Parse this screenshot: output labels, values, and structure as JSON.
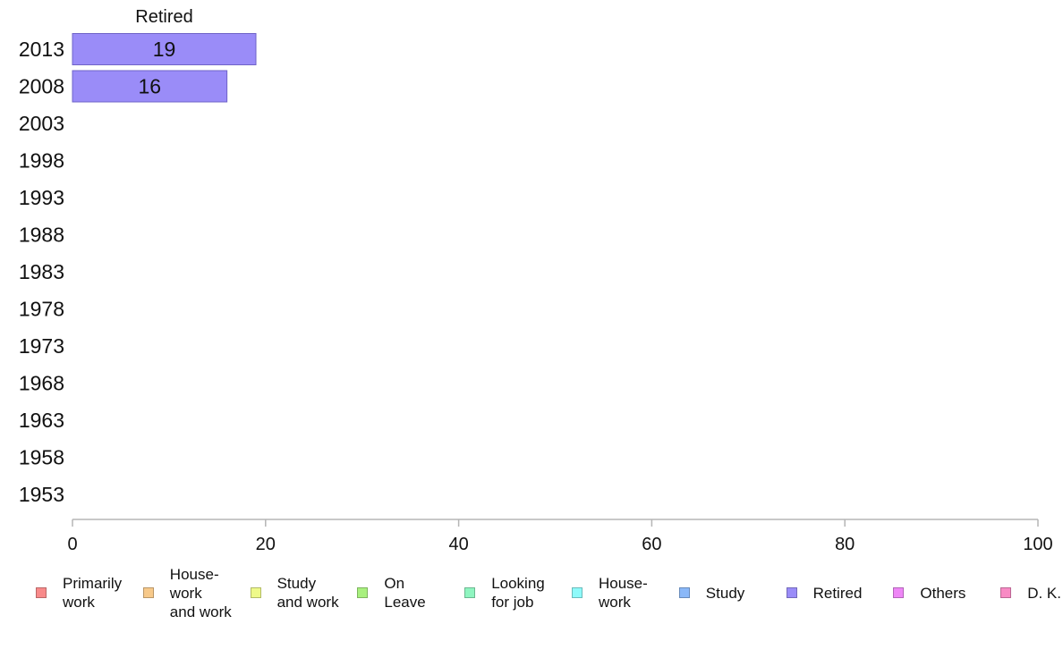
{
  "chart_data": {
    "type": "bar",
    "orientation": "horizontal",
    "stacked": true,
    "categories": [
      "2013",
      "2008",
      "2003",
      "1998",
      "1993",
      "1988",
      "1983",
      "1978",
      "1973",
      "1968",
      "1963",
      "1958",
      "1953"
    ],
    "series": [
      {
        "name": "Primarily\nwork",
        "color": "#f88a8a",
        "values": [
          null,
          null,
          null,
          null,
          null,
          null,
          null,
          null,
          null,
          null,
          null,
          null,
          null
        ]
      },
      {
        "name": "House-\nwork\nand work",
        "color": "#f7c98a",
        "values": [
          null,
          null,
          null,
          null,
          null,
          null,
          null,
          null,
          null,
          null,
          null,
          null,
          null
        ]
      },
      {
        "name": "Study\nand work",
        "color": "#eef98a",
        "values": [
          null,
          null,
          null,
          null,
          null,
          null,
          null,
          null,
          null,
          null,
          null,
          null,
          null
        ]
      },
      {
        "name": "On\nLeave",
        "color": "#a8f07e",
        "values": [
          null,
          null,
          null,
          null,
          null,
          null,
          null,
          null,
          null,
          null,
          null,
          null,
          null
        ]
      },
      {
        "name": "Looking\nfor job",
        "color": "#8ff5c0",
        "values": [
          null,
          null,
          null,
          null,
          null,
          null,
          null,
          null,
          null,
          null,
          null,
          null,
          null
        ]
      },
      {
        "name": "House-\nwork",
        "color": "#8efafa",
        "values": [
          null,
          null,
          null,
          null,
          null,
          null,
          null,
          null,
          null,
          null,
          null,
          null,
          null
        ]
      },
      {
        "name": "Study",
        "color": "#8ab8f8",
        "values": [
          null,
          null,
          null,
          null,
          null,
          null,
          null,
          null,
          null,
          null,
          null,
          null,
          null
        ]
      },
      {
        "name": "Retired",
        "color": "#9a8cf8",
        "values": [
          19,
          16,
          null,
          null,
          null,
          null,
          null,
          null,
          null,
          null,
          null,
          null,
          null
        ]
      },
      {
        "name": "Others",
        "color": "#ee86f6",
        "values": [
          null,
          null,
          null,
          null,
          null,
          null,
          null,
          null,
          null,
          null,
          null,
          null,
          null
        ]
      },
      {
        "name": "D. K.",
        "color": "#f88ac4",
        "values": [
          null,
          null,
          null,
          null,
          null,
          null,
          null,
          null,
          null,
          null,
          null,
          null,
          null
        ]
      }
    ],
    "series_header": "Retired",
    "xlim": [
      0,
      100
    ],
    "xticks": [
      "0",
      "20",
      "40",
      "60",
      "80",
      "100"
    ],
    "grid": false,
    "legend_position": "bottom"
  }
}
